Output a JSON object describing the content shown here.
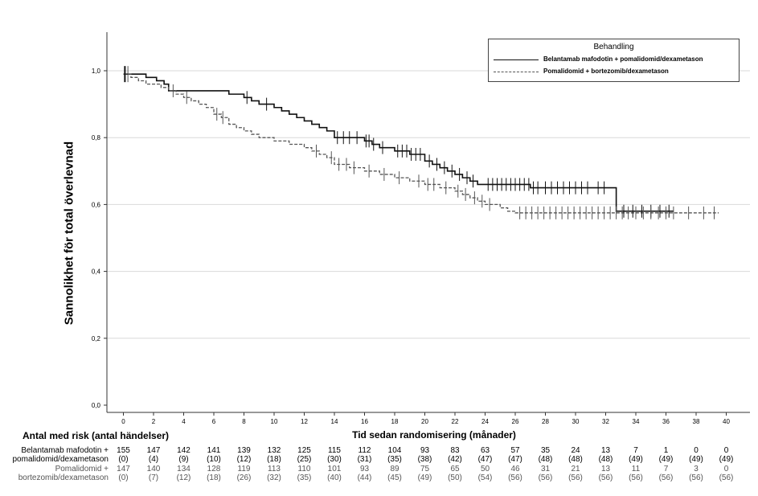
{
  "chart_data": {
    "type": "line",
    "xlabel": "Tid sedan randomisering (månader)",
    "ylabel": "Sannolikhet för total överlevnad",
    "xlim": [
      -1,
      41.5
    ],
    "ylim": [
      0,
      1.1
    ],
    "xticks": [
      "0",
      "2",
      "4",
      "6",
      "8",
      "10",
      "12",
      "14",
      "16",
      "18",
      "20",
      "22",
      "24",
      "26",
      "28",
      "30",
      "32",
      "34",
      "36",
      "38",
      "40"
    ],
    "xtick_values": [
      0,
      2,
      4,
      6,
      8,
      10,
      12,
      14,
      16,
      18,
      20,
      22,
      24,
      26,
      28,
      30,
      32,
      34,
      36,
      38,
      40
    ],
    "yticks": [
      "0,0",
      "0,2",
      "0,4",
      "0,6",
      "0,8",
      "1,0"
    ],
    "ytick_values": [
      0,
      0.2,
      0.4,
      0.6,
      0.8,
      1.0
    ],
    "grid": "horizontal",
    "legend": {
      "title": "Behandling",
      "placement": "top-right",
      "items": [
        "Belantamab mafodotin + pomalidomid/dexametason",
        "Pomalidomid + bortezomib/dexametason"
      ]
    },
    "series": [
      {
        "name": "Belantamab mafodotin + pomalidomid/dexametason",
        "color": "#111111",
        "style": "solid",
        "x": [
          0,
          1.5,
          2.2,
          2.7,
          3.0,
          6.0,
          7.0,
          8.0,
          8.5,
          9.0,
          10.0,
          10.5,
          11.0,
          11.5,
          12.0,
          12.5,
          13.0,
          13.5,
          14.0,
          15.0,
          16.0,
          16.5,
          17.0,
          18.0,
          19.0,
          20.0,
          20.5,
          21.0,
          21.5,
          22.0,
          22.5,
          23.0,
          23.5,
          24.0,
          27.0,
          32.0,
          32.7,
          36.5
        ],
        "y": [
          0.99,
          0.98,
          0.97,
          0.96,
          0.94,
          0.94,
          0.93,
          0.92,
          0.91,
          0.9,
          0.89,
          0.88,
          0.87,
          0.86,
          0.85,
          0.84,
          0.83,
          0.82,
          0.8,
          0.8,
          0.79,
          0.78,
          0.77,
          0.76,
          0.75,
          0.73,
          0.72,
          0.71,
          0.7,
          0.69,
          0.68,
          0.67,
          0.66,
          0.66,
          0.65,
          0.65,
          0.58,
          0.58
        ],
        "censor_x": [
          0.1,
          8.2,
          9.5,
          14.2,
          14.6,
          15.0,
          15.5,
          16.1,
          16.3,
          16.6,
          17.2,
          18.2,
          18.5,
          18.8,
          19.1,
          19.4,
          19.7,
          20.3,
          20.8,
          21.3,
          21.8,
          22.3,
          22.8,
          23.2,
          24.2,
          24.5,
          24.8,
          25.1,
          25.4,
          25.7,
          26.0,
          26.3,
          26.6,
          26.9,
          27.2,
          27.5,
          28.0,
          28.4,
          28.8,
          29.2,
          29.6,
          30.0,
          30.4,
          30.8,
          31.5,
          31.9,
          33.2,
          33.8,
          34.4,
          35.0,
          35.6,
          36.2
        ]
      },
      {
        "name": "Pomalidomid + bortezomib/dexametason",
        "color": "#555555",
        "style": "dashed",
        "x": [
          0,
          0.5,
          1.0,
          1.5,
          2.5,
          3.0,
          3.5,
          4.0,
          4.5,
          5.0,
          5.5,
          6.0,
          6.5,
          7.0,
          7.5,
          8.0,
          8.5,
          9.0,
          10.0,
          11.0,
          12.0,
          12.5,
          13.0,
          13.5,
          14.0,
          15.0,
          16.0,
          17.0,
          18.0,
          19.0,
          20.0,
          21.0,
          22.0,
          22.5,
          23.0,
          23.5,
          24.0,
          25.0,
          25.5,
          26.0,
          39.5
        ],
        "y": [
          0.99,
          0.98,
          0.97,
          0.96,
          0.95,
          0.94,
          0.93,
          0.92,
          0.91,
          0.9,
          0.89,
          0.87,
          0.86,
          0.84,
          0.83,
          0.82,
          0.81,
          0.8,
          0.79,
          0.78,
          0.77,
          0.76,
          0.75,
          0.74,
          0.72,
          0.71,
          0.7,
          0.69,
          0.68,
          0.67,
          0.66,
          0.65,
          0.64,
          0.63,
          0.62,
          0.61,
          0.6,
          0.59,
          0.58,
          0.575,
          0.575
        ],
        "censor_x": [
          0.3,
          3.3,
          4.2,
          6.2,
          6.6,
          12.8,
          13.8,
          14.3,
          14.8,
          15.3,
          16.3,
          17.3,
          18.3,
          19.6,
          20.2,
          20.6,
          21.4,
          22.2,
          22.7,
          23.3,
          23.8,
          24.3,
          26.3,
          26.7,
          27.1,
          27.5,
          27.9,
          28.3,
          28.7,
          29.1,
          29.5,
          29.9,
          30.3,
          30.7,
          31.1,
          31.5,
          31.9,
          32.3,
          32.7,
          33.1,
          33.5,
          34.0,
          34.5,
          35.0,
          35.5,
          36.0,
          36.5,
          37.5,
          38.5,
          39.2
        ]
      }
    ]
  },
  "risk_table": {
    "title": "Antal med risk (antal händelser)",
    "groups": [
      {
        "label_line1": "Belantamab mafodotin +",
        "label_line2": "pomalidomid/dexametason",
        "at_risk": [
          "155",
          "147",
          "142",
          "141",
          "139",
          "132",
          "125",
          "115",
          "112",
          "104",
          "93",
          "83",
          "63",
          "57",
          "35",
          "24",
          "13",
          "7",
          "1",
          "0",
          "0"
        ],
        "events": [
          "(0)",
          "(4)",
          "(9)",
          "(10)",
          "(12)",
          "(18)",
          "(25)",
          "(30)",
          "(31)",
          "(35)",
          "(38)",
          "(42)",
          "(47)",
          "(47)",
          "(48)",
          "(48)",
          "(48)",
          "(49)",
          "(49)",
          "(49)",
          "(49)"
        ]
      },
      {
        "label_line1": "Pomalidomid +",
        "label_line2": "bortezomib/dexametason",
        "at_risk": [
          "147",
          "140",
          "134",
          "128",
          "119",
          "113",
          "110",
          "101",
          "93",
          "89",
          "75",
          "65",
          "50",
          "46",
          "31",
          "21",
          "13",
          "11",
          "7",
          "3",
          "0"
        ],
        "events": [
          "(0)",
          "(7)",
          "(12)",
          "(18)",
          "(26)",
          "(32)",
          "(35)",
          "(40)",
          "(44)",
          "(45)",
          "(49)",
          "(50)",
          "(54)",
          "(56)",
          "(56)",
          "(56)",
          "(56)",
          "(56)",
          "(56)",
          "(56)",
          "(56)"
        ]
      }
    ]
  }
}
